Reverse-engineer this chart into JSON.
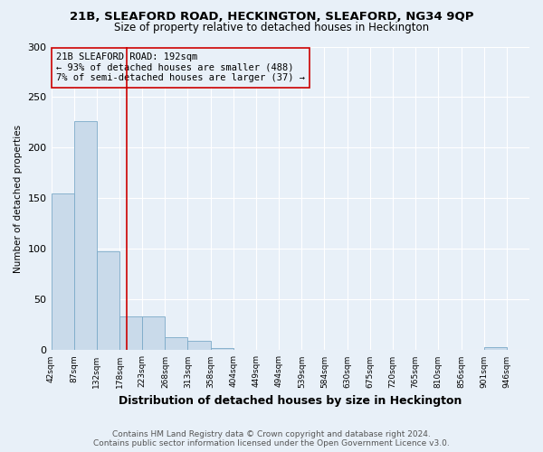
{
  "title1": "21B, SLEAFORD ROAD, HECKINGTON, SLEAFORD, NG34 9QP",
  "title2": "Size of property relative to detached houses in Heckington",
  "xlabel": "Distribution of detached houses by size in Heckington",
  "ylabel": "Number of detached properties",
  "annotation_line1": "21B SLEAFORD ROAD: 192sqm",
  "annotation_line2": "← 93% of detached houses are smaller (488)",
  "annotation_line3": "7% of semi-detached houses are larger (37) →",
  "bar_edges": [
    42,
    87,
    132,
    178,
    223,
    268,
    313,
    358,
    404,
    449,
    494,
    539,
    584,
    630,
    675,
    720,
    765,
    810,
    856,
    901,
    946
  ],
  "bar_heights": [
    155,
    226,
    98,
    33,
    33,
    13,
    9,
    2,
    0,
    0,
    0,
    0,
    0,
    0,
    0,
    0,
    0,
    0,
    0,
    3,
    0
  ],
  "bar_color": "#c9daea",
  "bar_edge_color": "#7baac8",
  "vline_color": "#cc0000",
  "vline_x": 192,
  "annotation_box_edge_color": "#cc0000",
  "background_color": "#e8f0f8",
  "grid_color": "#ffffff",
  "plot_bg_color": "#e8f0f8",
  "ylim": [
    0,
    300
  ],
  "yticks": [
    0,
    50,
    100,
    150,
    200,
    250,
    300
  ],
  "footer_line1": "Contains HM Land Registry data © Crown copyright and database right 2024.",
  "footer_line2": "Contains public sector information licensed under the Open Government Licence v3.0.",
  "title1_fontsize": 9.5,
  "title2_fontsize": 8.5,
  "xlabel_fontsize": 9,
  "ylabel_fontsize": 7.5,
  "tick_label_fontsize": 6.5,
  "annotation_fontsize": 7.5,
  "footer_fontsize": 6.5,
  "ytick_fontsize": 8
}
